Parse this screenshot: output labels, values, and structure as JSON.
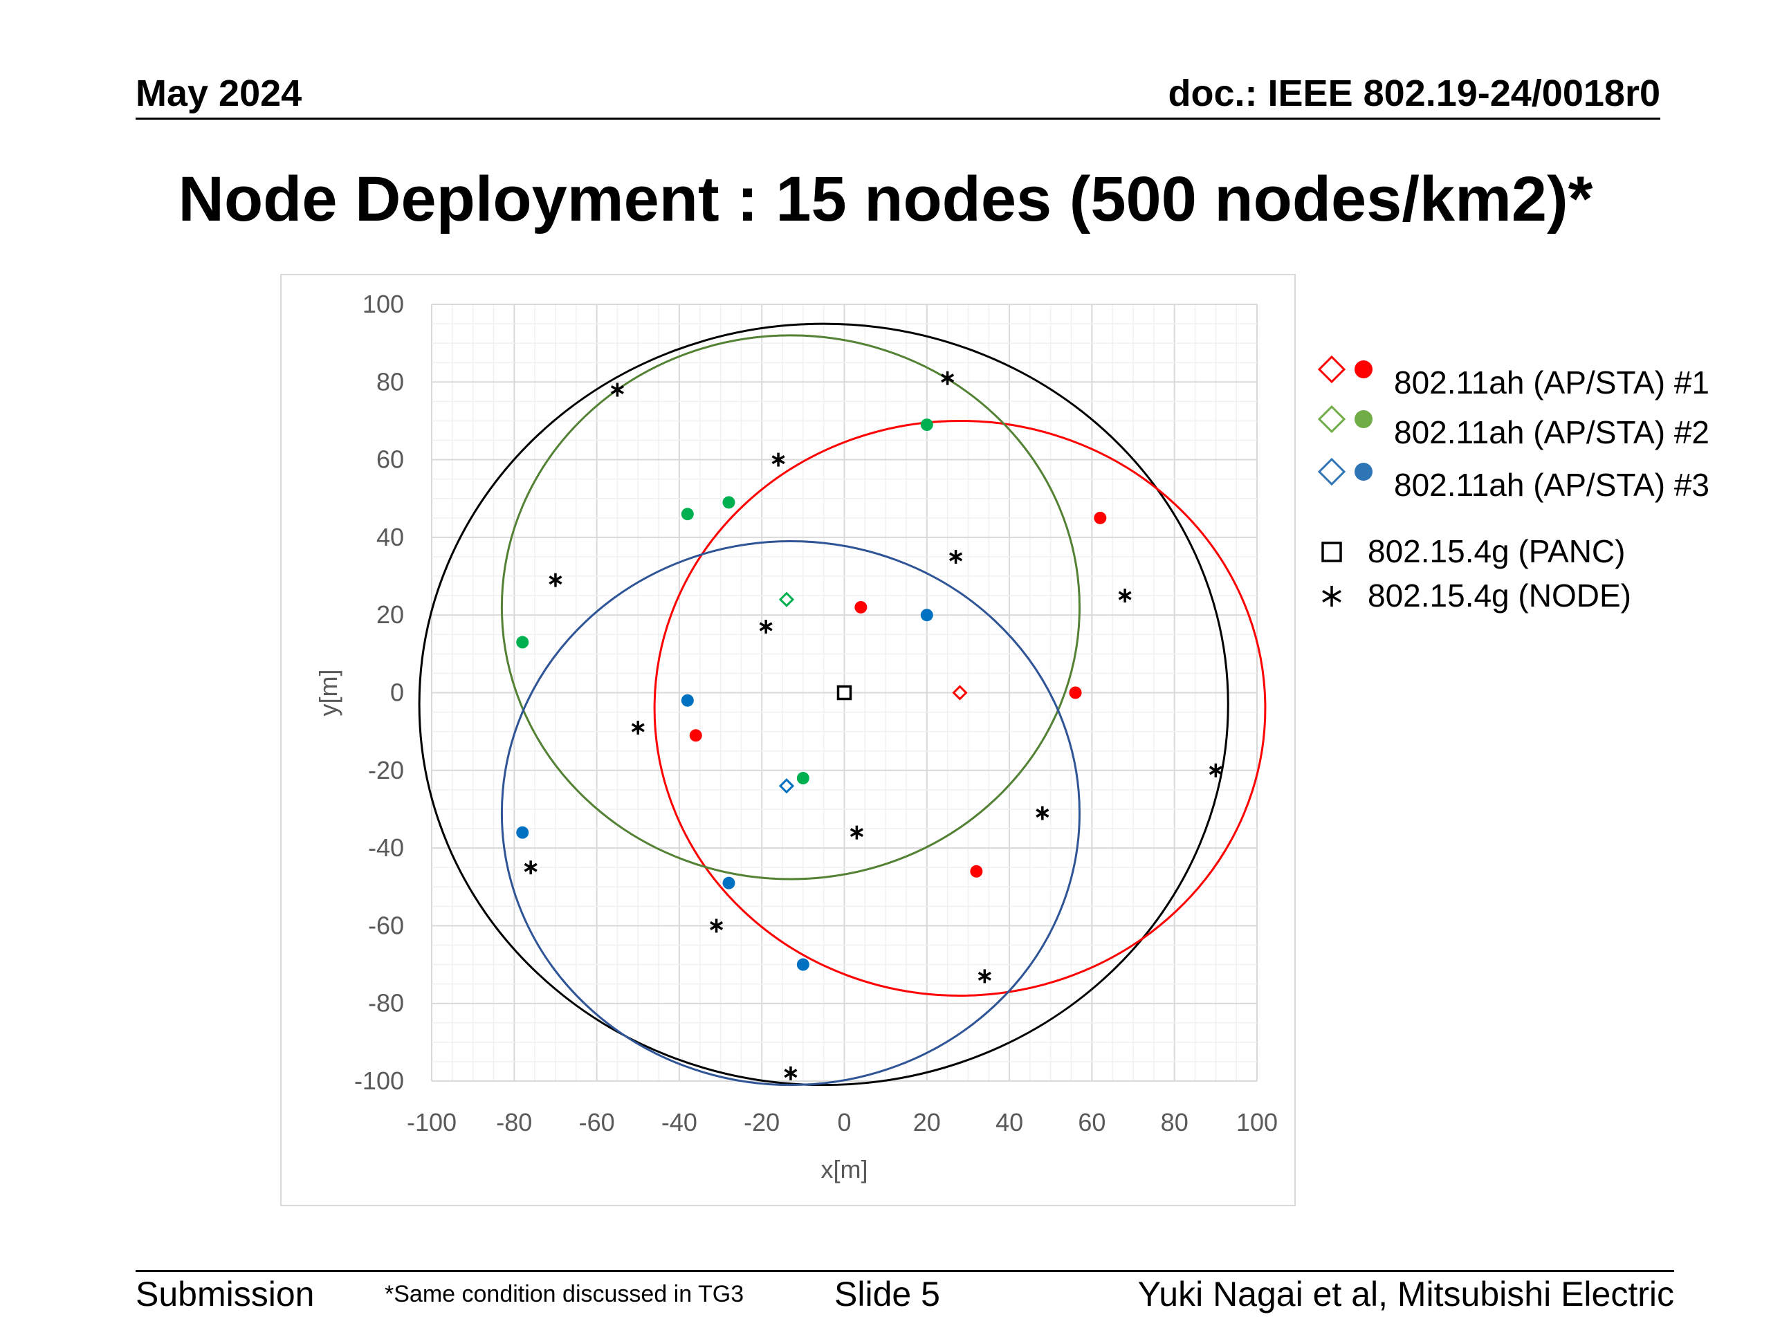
{
  "header": {
    "date": "May 2024",
    "doc": "doc.: IEEE 802.19-24/0018r0"
  },
  "title": "Node Deployment : 15 nodes (500 nodes/km2)*",
  "footer": {
    "submission": "Submission",
    "note": "*Same condition discussed in TG3",
    "slide": "Slide 5",
    "author": "Yuki Nagai et al, Mitsubishi Electric"
  },
  "legend": [
    {
      "label": "802.11ah (AP/STA) #1",
      "color": "#ff0000",
      "markers": [
        "diamond-open",
        "circle-filled"
      ]
    },
    {
      "label": "802.11ah (AP/STA) #2",
      "color": "#70ad47",
      "markers": [
        "diamond-open",
        "circle-filled"
      ]
    },
    {
      "label": "802.11ah (AP/STA) #3",
      "color": "#2e75b6",
      "markers": [
        "diamond-open",
        "circle-filled"
      ]
    },
    {
      "label": "802.15.4g (PANC)",
      "color": "#000000",
      "markers": [
        "square-open"
      ]
    },
    {
      "label": "802.15.4g (NODE)",
      "color": "#000000",
      "markers": [
        "asterisk"
      ]
    }
  ],
  "chart_data": {
    "type": "scatter",
    "xlabel": "x[m]",
    "ylabel": "y[m]",
    "xlim": [
      -100,
      100
    ],
    "ylim": [
      -100,
      100
    ],
    "xticks": [
      -100,
      -80,
      -60,
      -40,
      -20,
      0,
      20,
      40,
      60,
      80,
      100
    ],
    "yticks": [
      -100,
      -80,
      -60,
      -40,
      -20,
      0,
      20,
      40,
      60,
      80,
      100
    ],
    "grid": true,
    "legend_position": "right",
    "circles": [
      {
        "name": "deployment area",
        "color": "#000000",
        "cx": -5,
        "cy": -3,
        "r": 98
      },
      {
        "name": "coverage #1",
        "color": "#ff0000",
        "cx": 28,
        "cy": -4,
        "r": 74
      },
      {
        "name": "coverage #2",
        "color": "#548235",
        "cx": -13,
        "cy": 22,
        "r": 70
      },
      {
        "name": "coverage #3",
        "color": "#2f5597",
        "cx": -13,
        "cy": -31,
        "r": 70
      }
    ],
    "series": [
      {
        "name": "802.11ah (AP/STA) #1",
        "color": "#ff0000",
        "ap": [
          [
            28,
            0
          ]
        ],
        "sta": [
          [
            4,
            22
          ],
          [
            62,
            45
          ],
          [
            56,
            0
          ],
          [
            -36,
            -11
          ],
          [
            32,
            -46
          ]
        ]
      },
      {
        "name": "802.11ah (AP/STA) #2",
        "color": "#00b050",
        "ap": [
          [
            -14,
            24
          ]
        ],
        "sta": [
          [
            20,
            69
          ],
          [
            -28,
            49
          ],
          [
            -38,
            46
          ],
          [
            -78,
            13
          ],
          [
            -10,
            -22
          ]
        ]
      },
      {
        "name": "802.11ah (AP/STA) #3",
        "color": "#0070c0",
        "ap": [
          [
            -14,
            -24
          ]
        ],
        "sta": [
          [
            20,
            20
          ],
          [
            -38,
            -2
          ],
          [
            -78,
            -36
          ],
          [
            -28,
            -49
          ],
          [
            -10,
            -70
          ]
        ]
      },
      {
        "name": "802.15.4g (PANC)",
        "color": "#000000",
        "points": [
          [
            0,
            0
          ]
        ]
      },
      {
        "name": "802.15.4g (NODE)",
        "color": "#000000",
        "points": [
          [
            -55,
            78
          ],
          [
            25,
            81
          ],
          [
            -16,
            60
          ],
          [
            -70,
            29
          ],
          [
            27,
            35
          ],
          [
            68,
            25
          ],
          [
            -19,
            17
          ],
          [
            -50,
            -9
          ],
          [
            90,
            -20
          ],
          [
            48,
            -31
          ],
          [
            3,
            -36
          ],
          [
            -76,
            -45
          ],
          [
            -31,
            -60
          ],
          [
            34,
            -73
          ],
          [
            -13,
            -98
          ]
        ]
      }
    ]
  }
}
